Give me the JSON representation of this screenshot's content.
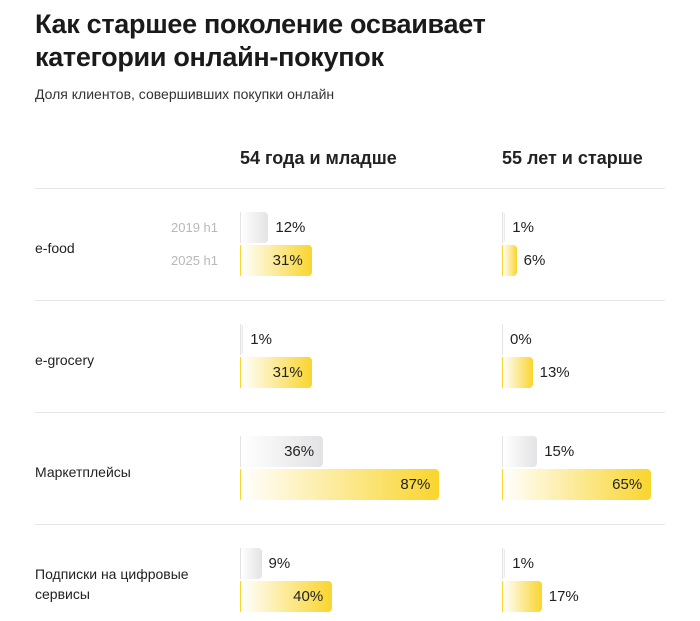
{
  "chart_data": {
    "type": "bar",
    "title": "Как старшее поколение осваивает категории онлайн-покупок",
    "subtitle": "Доля клиентов, совершивших покупки онлайн",
    "categories": [
      "e-food",
      "e-grocery",
      "Маркетплейсы",
      "Подписки на цифровые сервисы"
    ],
    "xlim": [
      0,
      100
    ],
    "panels": [
      {
        "title": "54 года и младше",
        "series": [
          {
            "name": "2019 h1",
            "color": "#e3e3e5",
            "values": [
              12,
              1,
              36,
              9
            ],
            "value_labels": [
              "12%",
              "1%",
              "36%",
              "9%"
            ]
          },
          {
            "name": "2025 h1",
            "color": "#f9d52e",
            "values": [
              31,
              31,
              87,
              40
            ],
            "value_labels": [
              "31%",
              "31%",
              "87%",
              "40%"
            ]
          }
        ]
      },
      {
        "title": "55 лет и старше",
        "series": [
          {
            "name": "2019 h1",
            "color": "#e3e3e5",
            "values": [
              1,
              0,
              15,
              1
            ],
            "value_labels": [
              "1%",
              "0%",
              "15%",
              "1%"
            ]
          },
          {
            "name": "2025 h1",
            "color": "#f9d52e",
            "values": [
              6,
              13,
              65,
              17
            ],
            "value_labels": [
              "6%",
              "13%",
              "65%",
              "17%"
            ]
          }
        ]
      }
    ]
  }
}
